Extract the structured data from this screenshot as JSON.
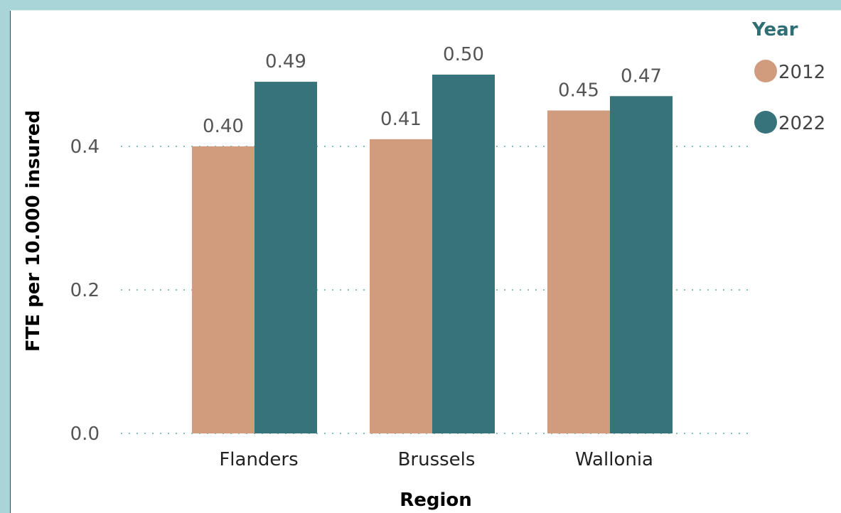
{
  "chart_data": {
    "type": "bar",
    "categories": [
      "Flanders",
      "Brussels",
      "Wallonia"
    ],
    "series": [
      {
        "name": "2012",
        "values": [
          0.4,
          0.41,
          0.45
        ],
        "labels": [
          "0.40",
          "0.41",
          "0.45"
        ],
        "color": "#d09c7d"
      },
      {
        "name": "2022",
        "values": [
          0.49,
          0.5,
          0.47
        ],
        "labels": [
          "0.49",
          "0.50",
          "0.47"
        ],
        "color": "#37737b"
      }
    ],
    "xlabel": "Region",
    "ylabel": "FTE per 10.000 insured",
    "ylim": [
      0,
      0.5
    ],
    "yticks": [
      {
        "value": 0.0,
        "label": "0.0"
      },
      {
        "value": 0.2,
        "label": "0.2"
      },
      {
        "value": 0.4,
        "label": "0.4"
      }
    ],
    "legend": {
      "title": "Year",
      "placement": "top-right"
    },
    "grid": true,
    "grid_color": "#7fc4c0"
  }
}
